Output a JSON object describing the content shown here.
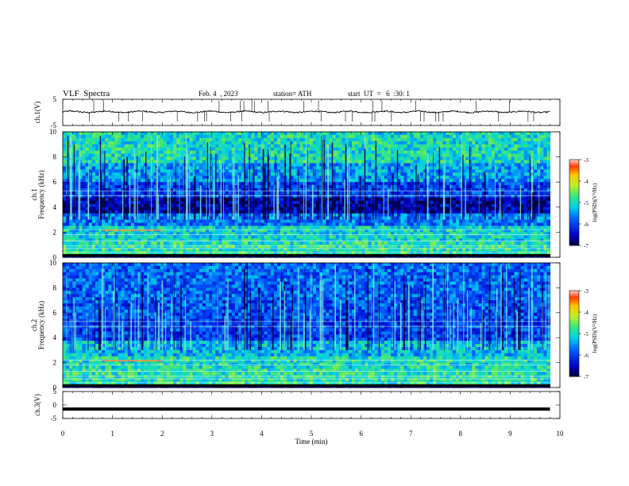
{
  "header": {
    "title": "VLF  Spectra",
    "date": "Feb. 4  , 2023",
    "station": "station= ATH",
    "start": "start  UT  =   6  :30: 1"
  },
  "chart_data": [
    {
      "type": "line",
      "ylabel": "ch.1(V)",
      "yticks": [
        "5",
        "-5"
      ],
      "ylim": [
        -5,
        5
      ],
      "xlim": [
        0,
        10
      ],
      "series": [
        {
          "x_range": [
            0,
            9.8
          ],
          "approx_value": 0.2,
          "note_values_read": "noisy trace near 0 with brief spikes"
        }
      ]
    },
    {
      "type": "heatmap",
      "ylabel": "ch.1\nFrequency  (kHz)",
      "yticks": [
        "0",
        "2",
        "4",
        "6",
        "8",
        "10"
      ],
      "ylim": [
        0,
        10
      ],
      "xlim": [
        0,
        10
      ],
      "time_range": [
        0,
        9.8
      ],
      "colorbar": {
        "label": "log(PSD)(V²/Hz)",
        "ticks": [
          "-3",
          "-4",
          "-5",
          "-6",
          "-7"
        ],
        "range": [
          -7,
          -3
        ]
      }
    },
    {
      "type": "heatmap",
      "ylabel": "ch.2\nFrequency  (kHz)",
      "yticks": [
        "0",
        "2",
        "4",
        "6",
        "8",
        "10"
      ],
      "ylim": [
        0,
        10
      ],
      "xlim": [
        0,
        10
      ],
      "time_range": [
        0,
        9.8
      ],
      "colorbar": {
        "label": "log(PSD)(V²/Hz)",
        "ticks": [
          "-3",
          "-4",
          "-5",
          "-6",
          "-7"
        ],
        "range": [
          -7,
          -3
        ]
      }
    },
    {
      "type": "line",
      "ylabel": "ch.3(V)",
      "yticks": [
        "5",
        "0",
        "-5"
      ],
      "ylim": [
        -5,
        5
      ],
      "xlim": [
        0,
        10
      ],
      "series": [
        {
          "x_range": [
            0,
            9.8
          ],
          "approx_value": -1.5
        }
      ]
    }
  ],
  "xaxis": {
    "label": "Time  (min)",
    "ticks": [
      "0",
      "1",
      "2",
      "3",
      "4",
      "5",
      "6",
      "7",
      "8",
      "9",
      "10"
    ]
  }
}
